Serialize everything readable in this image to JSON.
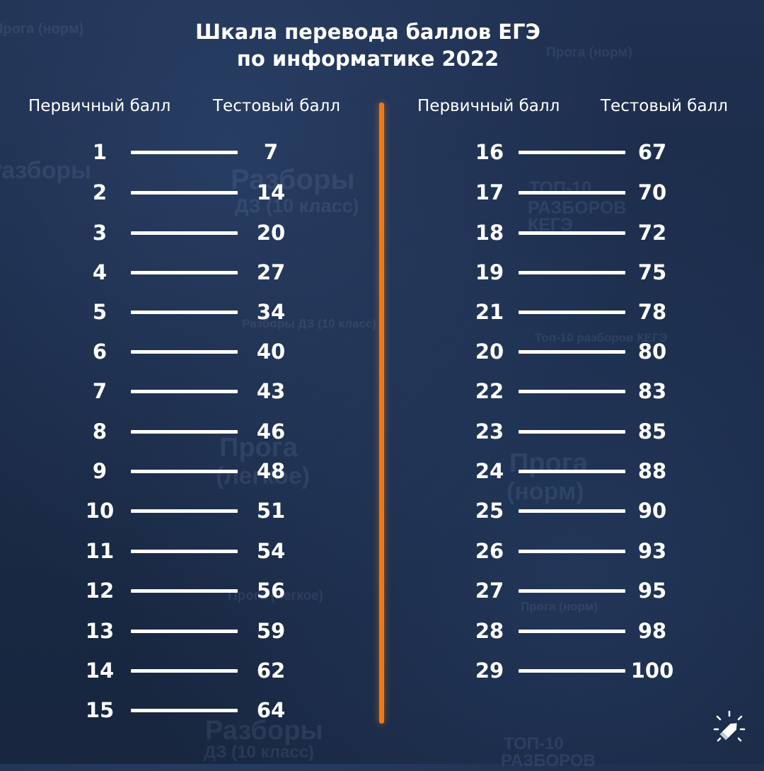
{
  "title": {
    "line1": "Шкала перевода баллов ЕГЭ",
    "line2": "по информатике 2022"
  },
  "headers": {
    "left_primary": "Первичный балл",
    "left_test": "Тестовый балл",
    "right_primary": "Первичный балл",
    "right_test": "Тестовый балл"
  },
  "left_rows": [
    {
      "primary": "1",
      "test": "7"
    },
    {
      "primary": "2",
      "test": "14"
    },
    {
      "primary": "3",
      "test": "20"
    },
    {
      "primary": "4",
      "test": "27"
    },
    {
      "primary": "5",
      "test": "34"
    },
    {
      "primary": "6",
      "test": "40"
    },
    {
      "primary": "7",
      "test": "43"
    },
    {
      "primary": "8",
      "test": "46"
    },
    {
      "primary": "9",
      "test": "48"
    },
    {
      "primary": "10",
      "test": "51"
    },
    {
      "primary": "11",
      "test": "54"
    },
    {
      "primary": "12",
      "test": "56"
    },
    {
      "primary": "13",
      "test": "59"
    },
    {
      "primary": "14",
      "test": "62"
    },
    {
      "primary": "15",
      "test": "64"
    }
  ],
  "right_rows": [
    {
      "primary": "16",
      "test": "67"
    },
    {
      "primary": "17",
      "test": "70"
    },
    {
      "primary": "18",
      "test": "72"
    },
    {
      "primary": "19",
      "test": "75"
    },
    {
      "primary": "21",
      "test": "78"
    },
    {
      "primary": "20",
      "test": "80"
    },
    {
      "primary": "22",
      "test": "83"
    },
    {
      "primary": "23",
      "test": "85"
    },
    {
      "primary": "24",
      "test": "88"
    },
    {
      "primary": "25",
      "test": "90"
    },
    {
      "primary": "26",
      "test": "93"
    },
    {
      "primary": "27",
      "test": "95"
    },
    {
      "primary": "28",
      "test": "98"
    },
    {
      "primary": "29",
      "test": "100"
    }
  ],
  "background_texts": [
    "Прога (норм)",
    "Прога (норм)",
    "Разборы",
    "Разборы",
    "ДЗ (10 класс)",
    "ТОП-10",
    "РАЗБОРОВ",
    "КЕГЭ",
    "Разборы ДЗ (10 класс)",
    "Топ-10 разборов КЕГЭ",
    "Прога",
    "(легкое)",
    "Прога",
    "(норм)",
    "Прога (легкое)",
    "Прога (норм)",
    "Разборы",
    "ДЗ (10 класс)",
    "ТОП-10",
    "РАЗБОРОВ"
  ],
  "icons": {
    "logo": "pencil-sparkle-icon"
  },
  "colors": {
    "background": "#1b2b47",
    "divider": "#f07a12",
    "text": "#ffffff"
  }
}
